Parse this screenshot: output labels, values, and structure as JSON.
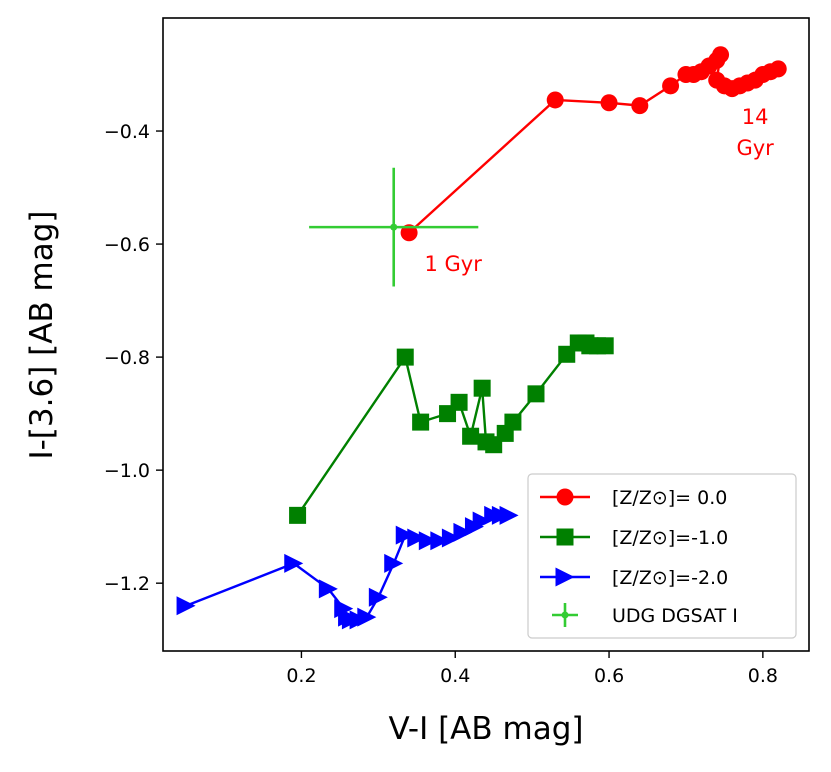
{
  "chart_data": {
    "type": "line",
    "title": "",
    "xlabel": "V-I [AB mag]",
    "ylabel": "I-[3.6] [AB mag]",
    "xlim": [
      0.02,
      0.86
    ],
    "ylim": [
      -1.32,
      -0.2
    ],
    "xticks": [
      0.2,
      0.4,
      0.6,
      0.8
    ],
    "xtick_labels": [
      "0.2",
      "0.4",
      "0.6",
      "0.8"
    ],
    "yticks": [
      -0.4,
      -0.6,
      -0.8,
      -1.0,
      -1.2
    ],
    "ytick_labels": [
      "−0.4",
      "−0.6",
      "−0.8",
      "−1.0",
      "−1.2"
    ],
    "grid": false,
    "legend_position": "lower-right",
    "series": [
      {
        "name": "[Z/Z⊙]= 0.0",
        "color": "#ff0000",
        "marker": "circle",
        "x": [
          0.34,
          0.53,
          0.6,
          0.64,
          0.68,
          0.7,
          0.71,
          0.72,
          0.73,
          0.74,
          0.745,
          0.74,
          0.75,
          0.76,
          0.77,
          0.78,
          0.79,
          0.8,
          0.81,
          0.82
        ],
        "y": [
          -0.58,
          -0.345,
          -0.35,
          -0.355,
          -0.32,
          -0.3,
          -0.3,
          -0.295,
          -0.285,
          -0.275,
          -0.265,
          -0.31,
          -0.32,
          -0.325,
          -0.32,
          -0.315,
          -0.31,
          -0.3,
          -0.295,
          -0.29
        ]
      },
      {
        "name": "[Z/Z⊙]=-1.0",
        "color": "#008000",
        "marker": "square",
        "x": [
          0.195,
          0.335,
          0.355,
          0.39,
          0.405,
          0.42,
          0.435,
          0.44,
          0.45,
          0.465,
          0.475,
          0.505,
          0.545,
          0.56,
          0.57,
          0.575,
          0.585,
          0.595
        ],
        "y": [
          -1.08,
          -0.8,
          -0.915,
          -0.9,
          -0.88,
          -0.94,
          -0.855,
          -0.95,
          -0.955,
          -0.935,
          -0.915,
          -0.865,
          -0.795,
          -0.775,
          -0.775,
          -0.78,
          -0.78,
          -0.78
        ]
      },
      {
        "name": "[Z/Z⊙]=-2.0",
        "color": "#0000ff",
        "marker": "triangle-right",
        "x": [
          0.05,
          0.19,
          0.235,
          0.255,
          0.26,
          0.265,
          0.275,
          0.285,
          0.3,
          0.32,
          0.335,
          0.35,
          0.365,
          0.38,
          0.395,
          0.41,
          0.425,
          0.435,
          0.45,
          0.46,
          0.47
        ],
        "y": [
          -1.24,
          -1.165,
          -1.21,
          -1.245,
          -1.26,
          -1.265,
          -1.265,
          -1.26,
          -1.225,
          -1.165,
          -1.115,
          -1.12,
          -1.125,
          -1.125,
          -1.12,
          -1.11,
          -1.1,
          -1.09,
          -1.08,
          -1.08,
          -1.08
        ]
      }
    ],
    "errorbar_point": {
      "name": "UDG DGSAT I",
      "color": "#33cc33",
      "x": 0.32,
      "y": -0.57,
      "xerr": 0.11,
      "yerr": 0.105
    },
    "annotations": [
      {
        "text": "1 Gyr",
        "x": 0.36,
        "y": -0.635
      },
      {
        "text": "14",
        "x": 0.79,
        "y": -0.375
      },
      {
        "text": "Gyr",
        "x": 0.79,
        "y": -0.43
      }
    ]
  }
}
